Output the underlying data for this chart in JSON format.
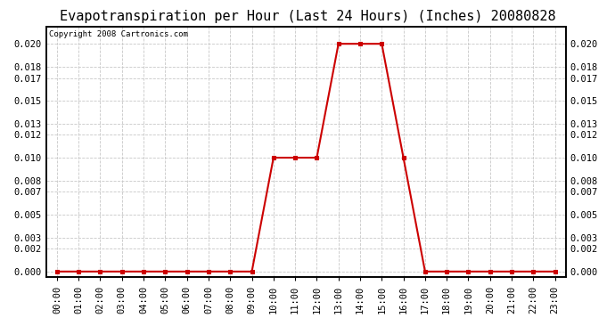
{
  "title": "Evapotranspiration per Hour (Last 24 Hours) (Inches) 20080828",
  "copyright": "Copyright 2008 Cartronics.com",
  "hours": [
    "00:00",
    "01:00",
    "02:00",
    "03:00",
    "04:00",
    "05:00",
    "06:00",
    "07:00",
    "08:00",
    "09:00",
    "10:00",
    "11:00",
    "12:00",
    "13:00",
    "14:00",
    "15:00",
    "16:00",
    "17:00",
    "18:00",
    "19:00",
    "20:00",
    "21:00",
    "22:00",
    "23:00"
  ],
  "values": [
    0.0,
    0.0,
    0.0,
    0.0,
    0.0,
    0.0,
    0.0,
    0.0,
    0.0,
    0.0,
    0.01,
    0.01,
    0.01,
    0.02,
    0.02,
    0.02,
    0.01,
    0.0,
    0.0,
    0.0,
    0.0,
    0.0,
    0.0,
    0.0
  ],
  "yticks": [
    0.0,
    0.002,
    0.003,
    0.005,
    0.007,
    0.008,
    0.01,
    0.012,
    0.013,
    0.015,
    0.017,
    0.018,
    0.02
  ],
  "line_color": "#cc0000",
  "marker_color": "#cc0000",
  "background_color": "#ffffff",
  "plot_bg_color": "#ffffff",
  "grid_color": "#c8c8c8",
  "title_fontsize": 11,
  "tick_fontsize": 7.5,
  "copyright_fontsize": 6.5,
  "ylim": [
    -0.0005,
    0.0215
  ]
}
